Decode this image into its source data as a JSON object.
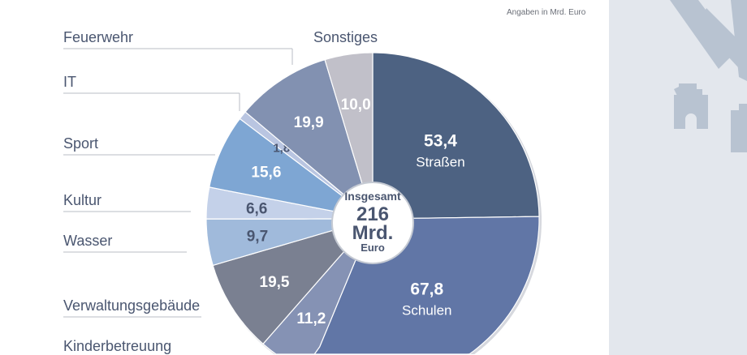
{
  "chart_data": {
    "type": "pie",
    "note": "Angaben in Mrd. Euro",
    "center": {
      "line1": "Insgesamt",
      "line2": "216",
      "line3": "Mrd.",
      "line4": "Euro"
    },
    "slices": [
      {
        "name": "Straßen",
        "value": 53.4,
        "label": "53,4",
        "color": "#4d6282"
      },
      {
        "name": "Schulen",
        "value": 67.8,
        "label": "67,8",
        "color": "#6176a6"
      },
      {
        "name": "Kinderbetreuung",
        "value": 11.2,
        "label": "11,2",
        "color": "#8592b4"
      },
      {
        "name": "Verwaltungsgebäude",
        "value": 19.5,
        "label": "19,5",
        "color": "#7a8091"
      },
      {
        "name": "Wasser",
        "value": 9.7,
        "label": "9,7",
        "color": "#a0badb"
      },
      {
        "name": "Kultur",
        "value": 6.6,
        "label": "6,6",
        "color": "#c4d1e9"
      },
      {
        "name": "Sport",
        "value": 15.6,
        "label": "15,6",
        "color": "#7ea6d3"
      },
      {
        "name": "IT",
        "value": 1.8,
        "label": "1,8",
        "color": "#b9c5e1"
      },
      {
        "name": "Feuerwehr",
        "value": 19.9,
        "label": "19,9",
        "color": "#8291b1"
      },
      {
        "name": "Sonstiges",
        "value": 10.0,
        "label": "10,0",
        "color": "#c1c0c9"
      }
    ]
  }
}
